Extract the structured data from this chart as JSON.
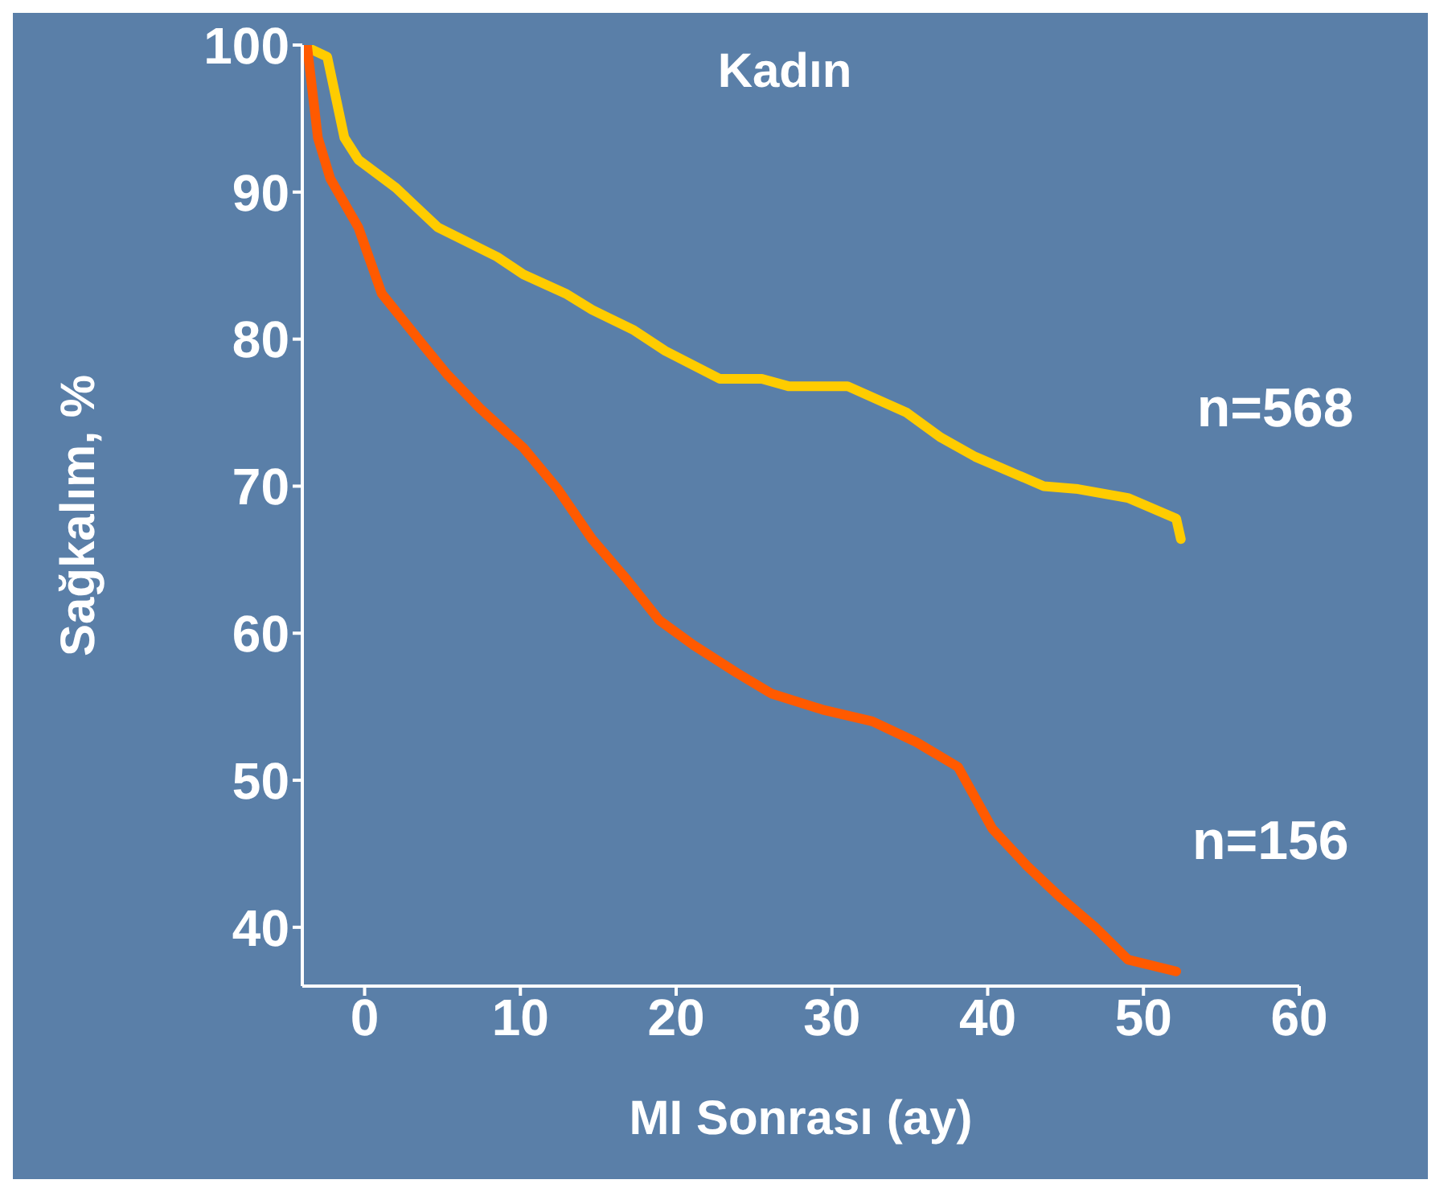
{
  "chart_data": {
    "type": "line",
    "title": "Kadın",
    "xlabel": "MI Sonrası (ay)",
    "ylabel": "Sağkalım, %",
    "xlim": [
      -4,
      60
    ],
    "xticks": [
      0,
      10,
      20,
      30,
      40,
      50,
      60
    ],
    "ylim": [
      36,
      100
    ],
    "yticks": [
      40,
      50,
      60,
      70,
      80,
      90,
      100
    ],
    "grid": false,
    "legend": false,
    "marker": "none",
    "line_style": "solid",
    "series": [
      {
        "name": "n=568",
        "color": "#ffcc00",
        "x": [
          -4,
          -2.4,
          -1.3,
          -0.4,
          2,
          4.7,
          8.5,
          10.2,
          12.9,
          14.6,
          17.3,
          19.3,
          22.8,
          25.5,
          27.2,
          31,
          34.8,
          37,
          39.2,
          43.6,
          45.8,
          49,
          52.1,
          52.4
        ],
        "values": [
          100,
          99.2,
          93.7,
          92.2,
          90.3,
          87.6,
          85.6,
          84.4,
          83.1,
          82,
          80.6,
          79.2,
          77.3,
          77.3,
          76.8,
          76.8,
          75,
          73.3,
          72,
          70,
          69.8,
          69.2,
          67.8,
          66.4
        ]
      },
      {
        "name": "n=156",
        "color": "#ff5a00",
        "x": [
          -3.7,
          -3,
          -2.2,
          -0.4,
          1.1,
          3.6,
          5.3,
          7.4,
          10.2,
          12.4,
          14.6,
          16.8,
          18.9,
          21.1,
          23.9,
          26.1,
          29.4,
          32.6,
          35.4,
          38.1,
          40.3,
          42.5,
          44.7,
          46.9,
          49,
          52.1
        ],
        "values": [
          100,
          93.7,
          90.9,
          87.6,
          83.1,
          79.8,
          77.6,
          75.3,
          72.6,
          69.8,
          66.4,
          63.7,
          60.9,
          59.2,
          57.3,
          55.9,
          54.8,
          54,
          52.6,
          50.9,
          46.7,
          44.2,
          42,
          40,
          37.8,
          37
        ]
      }
    ]
  }
}
